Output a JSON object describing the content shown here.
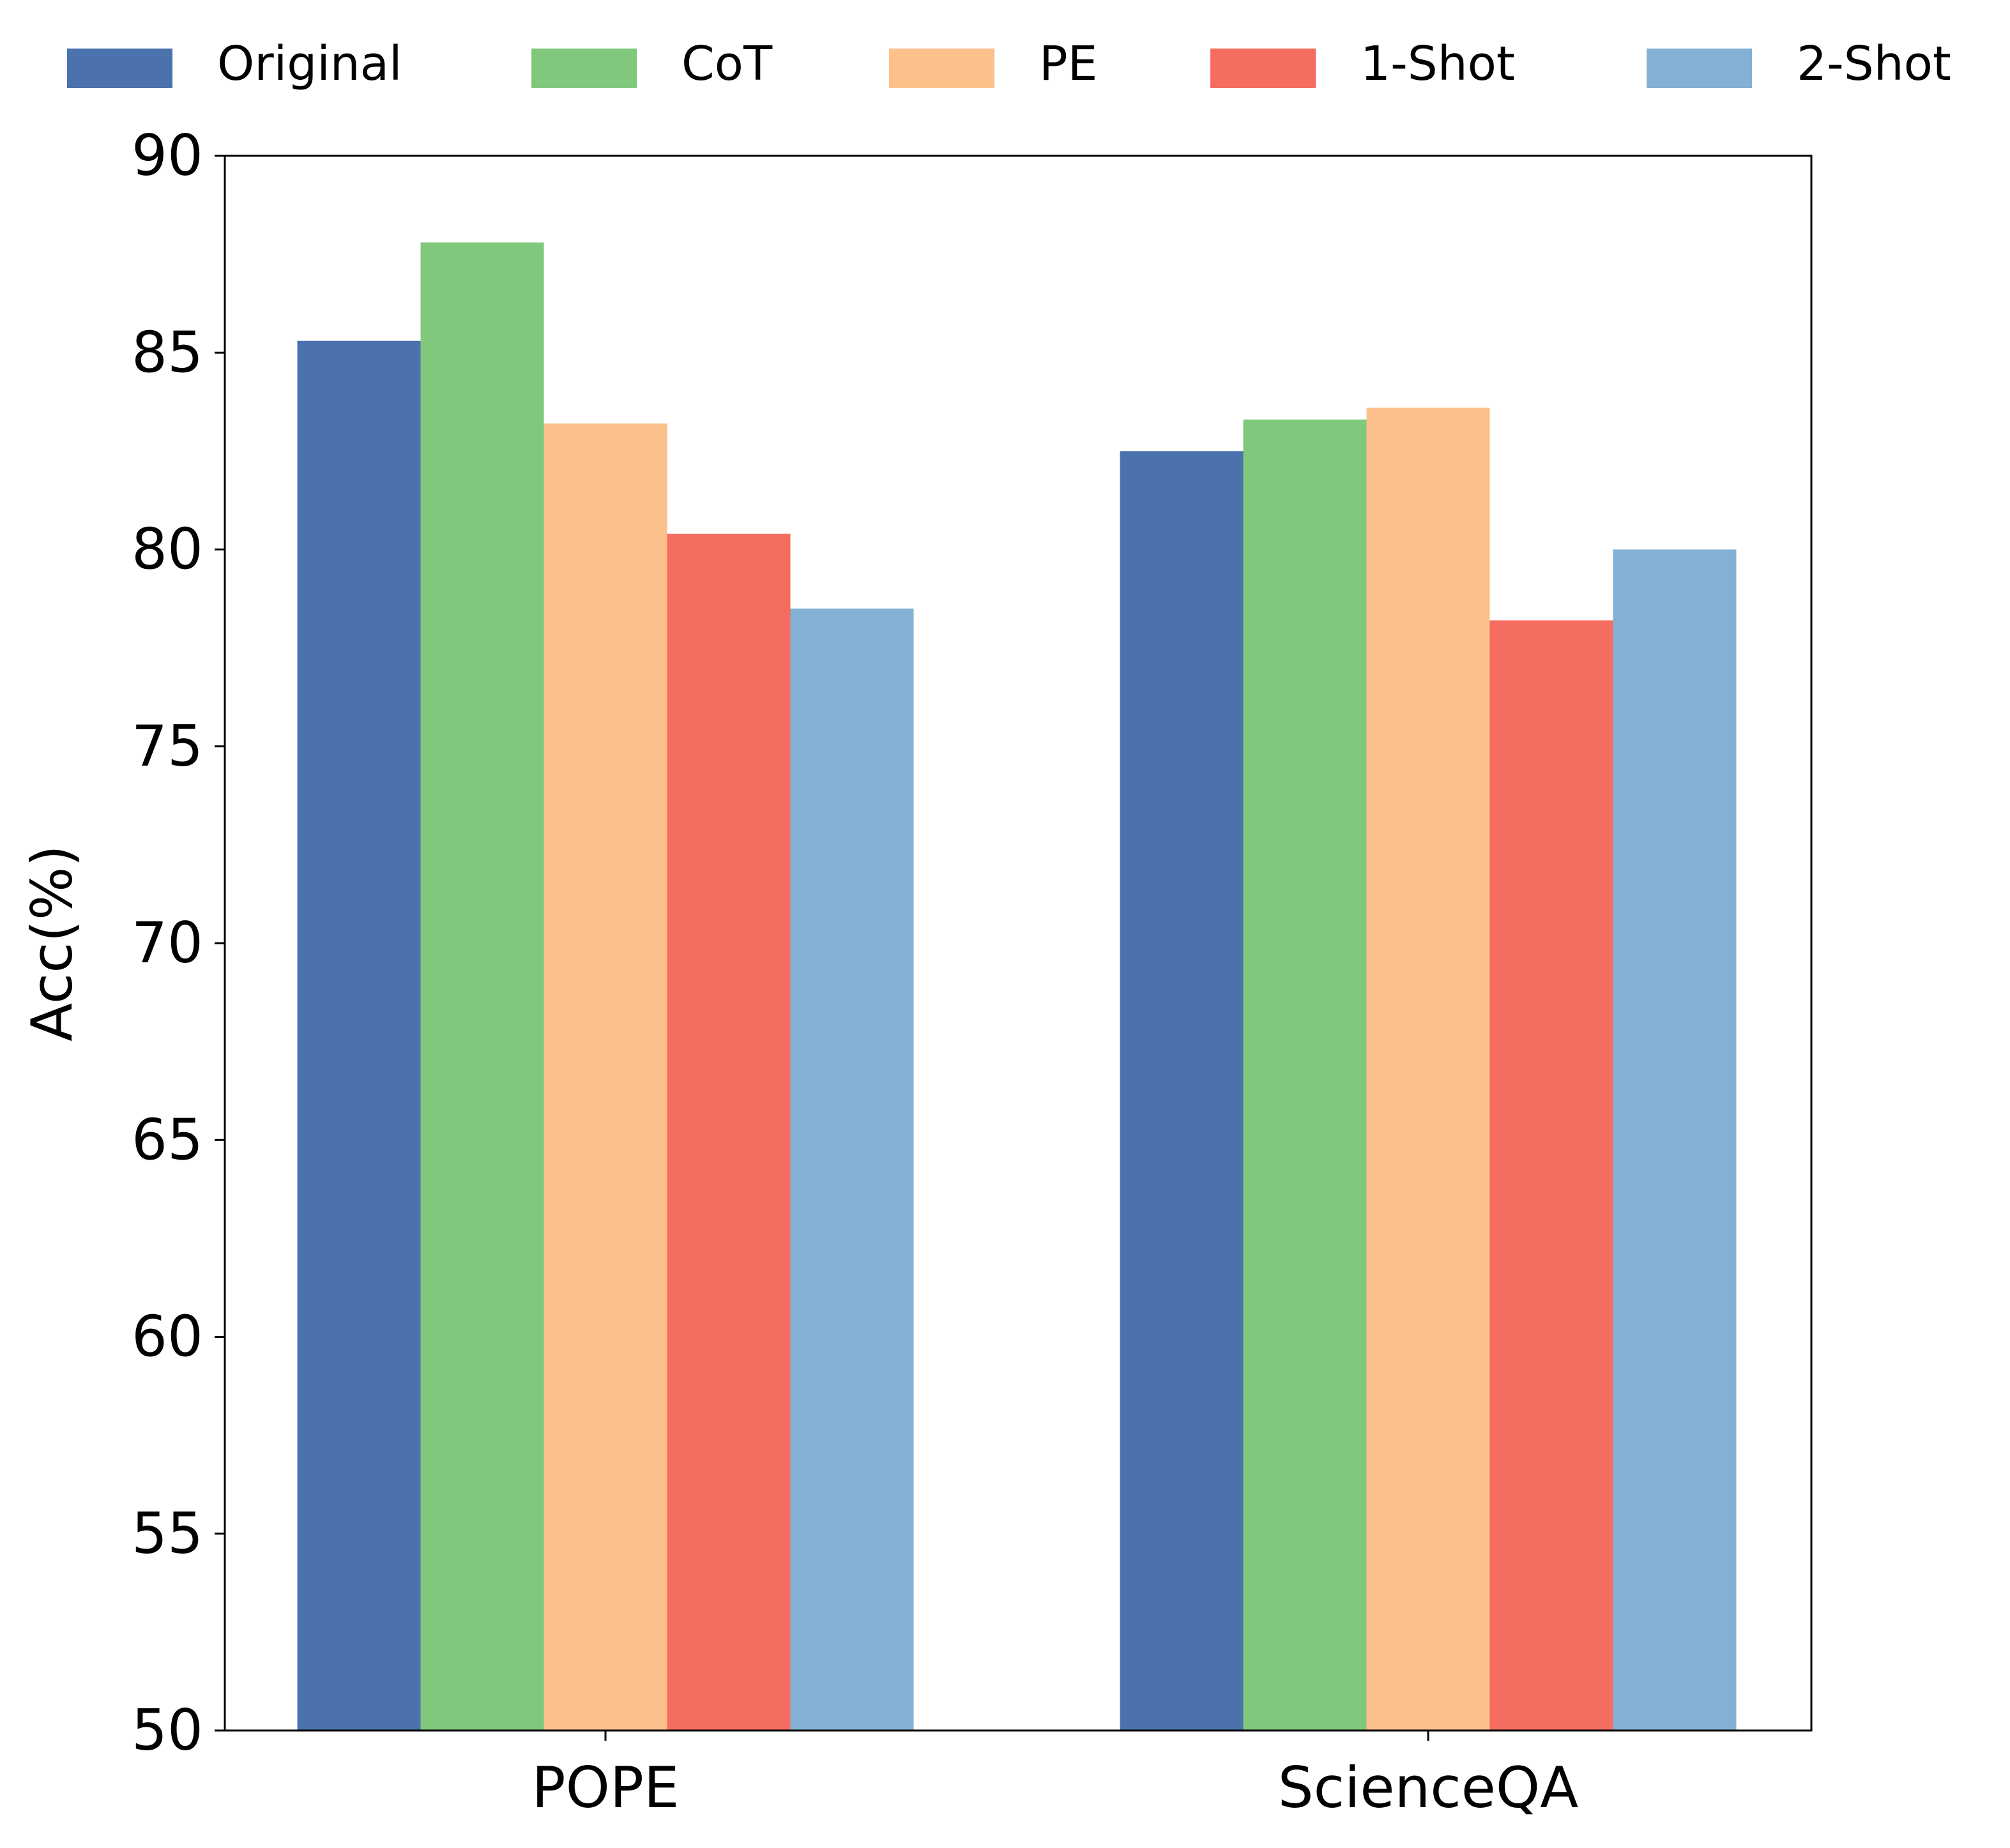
{
  "chart_data": {
    "type": "bar",
    "title": "",
    "xlabel": "",
    "ylabel": "Acc(%)",
    "ylim": [
      50,
      90
    ],
    "yticks": [
      50,
      55,
      60,
      65,
      70,
      75,
      80,
      85,
      90
    ],
    "categories": [
      "POPE",
      "ScienceQA"
    ],
    "legend_position": "top",
    "grid": false,
    "series": [
      {
        "name": "Original",
        "color": "#4c72ad",
        "values": [
          85.3,
          82.5
        ]
      },
      {
        "name": "CoT",
        "color": "#80c97c",
        "values": [
          87.8,
          83.3
        ]
      },
      {
        "name": "PE",
        "color": "#fcc08a",
        "values": [
          83.2,
          83.6
        ]
      },
      {
        "name": "1-Shot",
        "color": "#f46d60",
        "values": [
          80.4,
          78.2
        ]
      },
      {
        "name": "2-Shot",
        "color": "#83b1d3",
        "values": [
          78.5,
          80.0
        ]
      }
    ]
  }
}
